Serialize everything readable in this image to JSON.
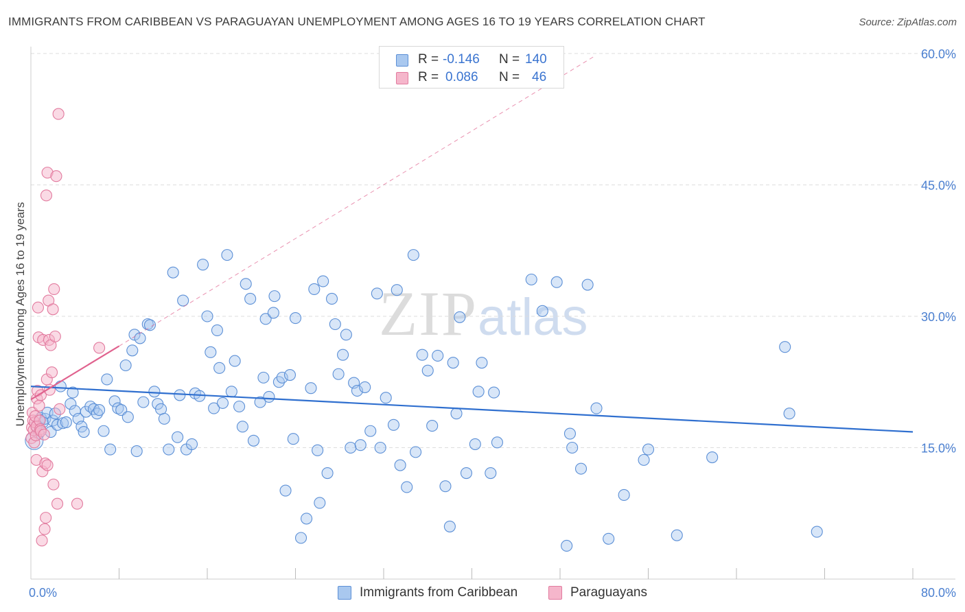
{
  "header": {
    "title": "IMMIGRANTS FROM CARIBBEAN VS PARAGUAYAN UNEMPLOYMENT AMONG AGES 16 TO 19 YEARS CORRELATION CHART",
    "source": "Source: ZipAtlas.com"
  },
  "watermark": {
    "zip": "ZIP",
    "atlas": "atlas"
  },
  "stats": {
    "rows": [
      {
        "r_label": "R =",
        "r_value": "-0.146",
        "n_label": "N =",
        "n_value": "140"
      },
      {
        "r_label": "R =",
        "r_value": "0.086",
        "n_label": "N =",
        "n_value": "46"
      }
    ]
  },
  "legend": {
    "items": [
      {
        "label": "Immigrants from Caribbean"
      },
      {
        "label": "Paraguayans"
      }
    ]
  },
  "colors": {
    "caribbean_fill": "#a9c8ef",
    "caribbean_stroke": "#5b8fd6",
    "caribbean_line": "#2f6fcf",
    "paraguayan_fill": "#f5b6cb",
    "paraguayan_stroke": "#e27a9e",
    "paraguayan_line": "#e0628e",
    "grid": "#dddddd",
    "axis_text": "#4a7fd0"
  },
  "chart_data": {
    "type": "scatter",
    "title": "IMMIGRANTS FROM CARIBBEAN VS PARAGUAYAN UNEMPLOYMENT AMONG AGES 16 TO 19 YEARS CORRELATION CHART",
    "xlabel": "",
    "ylabel": "Unemployment Among Ages 16 to 19 years",
    "xlim": [
      0,
      80
    ],
    "ylim": [
      0,
      60
    ],
    "x_tick_labels": [
      "0.0%",
      "80.0%"
    ],
    "y_ticks": [
      15,
      30,
      45,
      60
    ],
    "y_tick_labels": [
      "15.0%",
      "30.0%",
      "45.0%",
      "60.0%"
    ],
    "series": [
      {
        "name": "Immigrants from Caribbean",
        "R": -0.146,
        "N": 140,
        "trend": {
          "x": [
            0,
            80
          ],
          "y": [
            22.0,
            16.8
          ]
        },
        "points": [
          [
            0.5,
            17.5
          ],
          [
            0.7,
            16.6
          ],
          [
            0.9,
            18.4
          ],
          [
            1.1,
            17.9
          ],
          [
            1.3,
            18.3
          ],
          [
            1.5,
            19.0
          ],
          [
            1.8,
            16.8
          ],
          [
            2.0,
            18.1
          ],
          [
            2.2,
            18.9
          ],
          [
            2.4,
            17.6
          ],
          [
            2.7,
            22.0
          ],
          [
            2.9,
            17.8
          ],
          [
            3.2,
            17.9
          ],
          [
            3.6,
            20.0
          ],
          [
            3.8,
            21.3
          ],
          [
            4.0,
            19.2
          ],
          [
            4.3,
            18.3
          ],
          [
            4.6,
            17.4
          ],
          [
            4.8,
            16.8
          ],
          [
            5.0,
            19.1
          ],
          [
            5.4,
            19.7
          ],
          [
            5.7,
            19.4
          ],
          [
            6.0,
            18.9
          ],
          [
            6.2,
            19.3
          ],
          [
            6.6,
            16.9
          ],
          [
            6.9,
            22.8
          ],
          [
            7.2,
            14.8
          ],
          [
            7.6,
            20.3
          ],
          [
            7.9,
            19.5
          ],
          [
            8.2,
            19.3
          ],
          [
            8.6,
            24.4
          ],
          [
            8.8,
            18.5
          ],
          [
            9.2,
            26.1
          ],
          [
            9.4,
            27.9
          ],
          [
            9.6,
            14.6
          ],
          [
            9.9,
            27.5
          ],
          [
            10.2,
            20.2
          ],
          [
            10.6,
            29.1
          ],
          [
            10.8,
            29.0
          ],
          [
            11.2,
            21.4
          ],
          [
            11.5,
            20.0
          ],
          [
            11.8,
            19.4
          ],
          [
            12.1,
            18.3
          ],
          [
            12.5,
            14.8
          ],
          [
            12.9,
            35.0
          ],
          [
            13.3,
            16.2
          ],
          [
            13.5,
            21.0
          ],
          [
            13.8,
            31.8
          ],
          [
            14.1,
            14.8
          ],
          [
            14.6,
            15.4
          ],
          [
            14.9,
            21.2
          ],
          [
            15.3,
            20.9
          ],
          [
            15.6,
            35.9
          ],
          [
            16.0,
            30.0
          ],
          [
            16.3,
            25.9
          ],
          [
            16.6,
            19.5
          ],
          [
            16.9,
            28.4
          ],
          [
            17.1,
            24.1
          ],
          [
            17.4,
            20.1
          ],
          [
            17.8,
            37.0
          ],
          [
            18.2,
            21.4
          ],
          [
            18.5,
            24.9
          ],
          [
            18.9,
            19.7
          ],
          [
            19.2,
            17.4
          ],
          [
            19.5,
            33.7
          ],
          [
            19.9,
            32.0
          ],
          [
            20.2,
            15.8
          ],
          [
            20.8,
            20.2
          ],
          [
            21.1,
            23.0
          ],
          [
            21.3,
            29.7
          ],
          [
            21.6,
            20.8
          ],
          [
            22.0,
            30.4
          ],
          [
            22.1,
            32.3
          ],
          [
            22.5,
            22.5
          ],
          [
            22.8,
            23.0
          ],
          [
            23.1,
            10.1
          ],
          [
            23.5,
            23.3
          ],
          [
            23.8,
            16.0
          ],
          [
            24.0,
            29.8
          ],
          [
            24.5,
            4.7
          ],
          [
            25.0,
            6.9
          ],
          [
            25.4,
            21.8
          ],
          [
            25.7,
            33.1
          ],
          [
            26.0,
            14.7
          ],
          [
            26.2,
            8.7
          ],
          [
            26.5,
            34.0
          ],
          [
            26.9,
            12.1
          ],
          [
            27.3,
            32.0
          ],
          [
            27.6,
            29.1
          ],
          [
            27.9,
            23.4
          ],
          [
            28.3,
            25.6
          ],
          [
            28.6,
            27.9
          ],
          [
            29.0,
            15.0
          ],
          [
            29.3,
            22.4
          ],
          [
            29.6,
            21.5
          ],
          [
            29.9,
            15.3
          ],
          [
            30.3,
            21.9
          ],
          [
            30.8,
            16.9
          ],
          [
            31.4,
            32.6
          ],
          [
            31.7,
            15.0
          ],
          [
            32.2,
            20.7
          ],
          [
            32.9,
            17.6
          ],
          [
            33.2,
            33.0
          ],
          [
            33.5,
            13.0
          ],
          [
            34.1,
            10.5
          ],
          [
            34.7,
            37.0
          ],
          [
            34.9,
            14.5
          ],
          [
            35.5,
            25.6
          ],
          [
            36.0,
            23.8
          ],
          [
            36.4,
            17.5
          ],
          [
            36.9,
            25.5
          ],
          [
            37.6,
            10.6
          ],
          [
            38.0,
            6.0
          ],
          [
            38.3,
            24.7
          ],
          [
            38.6,
            18.9
          ],
          [
            38.9,
            29.9
          ],
          [
            39.5,
            12.1
          ],
          [
            40.3,
            15.4
          ],
          [
            40.6,
            21.4
          ],
          [
            40.9,
            24.7
          ],
          [
            41.7,
            12.1
          ],
          [
            42.0,
            21.3
          ],
          [
            42.3,
            15.6
          ],
          [
            45.4,
            34.2
          ],
          [
            46.4,
            30.6
          ],
          [
            47.7,
            33.9
          ],
          [
            49.1,
            15.0
          ],
          [
            48.6,
            3.8
          ],
          [
            48.9,
            16.6
          ],
          [
            49.9,
            12.6
          ],
          [
            50.5,
            33.6
          ],
          [
            51.3,
            19.5
          ],
          [
            52.4,
            4.6
          ],
          [
            53.8,
            9.6
          ],
          [
            55.6,
            13.6
          ],
          [
            56.0,
            14.8
          ],
          [
            58.6,
            5.0
          ],
          [
            61.8,
            13.9
          ],
          [
            68.4,
            26.5
          ],
          [
            68.8,
            18.9
          ],
          [
            71.3,
            5.4
          ]
        ]
      },
      {
        "name": "Paraguayans",
        "R": 0.086,
        "N": 46,
        "trend": {
          "x": [
            0,
            8
          ],
          "y": [
            20.5,
            26.6
          ]
        },
        "trend_dashed": {
          "x": [
            8,
            51
          ],
          "y": [
            26.6,
            59.6
          ]
        },
        "points": [
          [
            0.05,
            16.1
          ],
          [
            0.1,
            17.3
          ],
          [
            0.15,
            19.0
          ],
          [
            0.2,
            18.1
          ],
          [
            0.25,
            17.0
          ],
          [
            0.3,
            15.6
          ],
          [
            0.35,
            17.9
          ],
          [
            0.4,
            18.6
          ],
          [
            0.45,
            16.4
          ],
          [
            0.5,
            17.4
          ],
          [
            0.5,
            13.6
          ],
          [
            0.55,
            20.6
          ],
          [
            0.6,
            21.5
          ],
          [
            0.65,
            31.0
          ],
          [
            0.7,
            27.6
          ],
          [
            0.75,
            19.8
          ],
          [
            0.8,
            18.1
          ],
          [
            0.85,
            17.1
          ],
          [
            0.9,
            16.9
          ],
          [
            0.9,
            21.0
          ],
          [
            1.0,
            4.4
          ],
          [
            1.05,
            12.3
          ],
          [
            1.1,
            27.3
          ],
          [
            1.2,
            16.5
          ],
          [
            1.25,
            5.7
          ],
          [
            1.3,
            13.2
          ],
          [
            1.35,
            7.0
          ],
          [
            1.4,
            43.8
          ],
          [
            1.45,
            22.8
          ],
          [
            1.5,
            46.4
          ],
          [
            1.5,
            13.0
          ],
          [
            1.6,
            31.8
          ],
          [
            1.65,
            27.3
          ],
          [
            1.7,
            21.6
          ],
          [
            1.8,
            26.7
          ],
          [
            1.9,
            23.6
          ],
          [
            2.0,
            30.8
          ],
          [
            2.05,
            10.8
          ],
          [
            2.1,
            33.1
          ],
          [
            2.2,
            27.7
          ],
          [
            2.3,
            46.0
          ],
          [
            2.4,
            8.6
          ],
          [
            2.6,
            19.4
          ],
          [
            2.5,
            53.1
          ],
          [
            4.2,
            8.6
          ],
          [
            6.2,
            26.4
          ]
        ]
      }
    ]
  }
}
